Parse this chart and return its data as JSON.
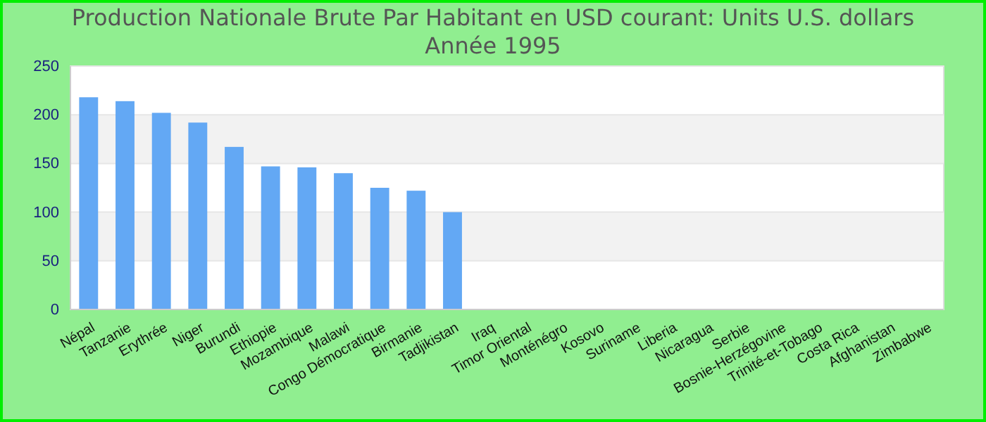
{
  "chart_data": {
    "type": "bar",
    "title": "Production Nationale Brute Par Habitant en USD courant: Units U.S. dollars",
    "subtitle": "Année 1995",
    "categories": [
      "Népal",
      "Tanzanie",
      "Erythrée",
      "Niger",
      "Burundi",
      "Ethiopie",
      "Mozambique",
      "Malawi",
      "Congo Démocratique",
      "Birmanie",
      "Tadjikistan",
      "Iraq",
      "Timor Oriental",
      "Monténégro",
      "Kosovo",
      "Suriname",
      "Liberia",
      "Nicaragua",
      "Serbie",
      "Bosnie-Herzégovine",
      "Trinité-et-Tobago",
      "Costa Rica",
      "Afghanistan",
      "Zimbabwe"
    ],
    "values": [
      218,
      214,
      202,
      192,
      167,
      147,
      146,
      140,
      125,
      122,
      100,
      null,
      null,
      null,
      null,
      null,
      null,
      null,
      null,
      null,
      null,
      null,
      null,
      null
    ],
    "color": "#63a8f4",
    "ylim": [
      0,
      250
    ],
    "yticks": [
      0,
      50,
      100,
      150,
      200,
      250
    ],
    "grid": "y"
  }
}
